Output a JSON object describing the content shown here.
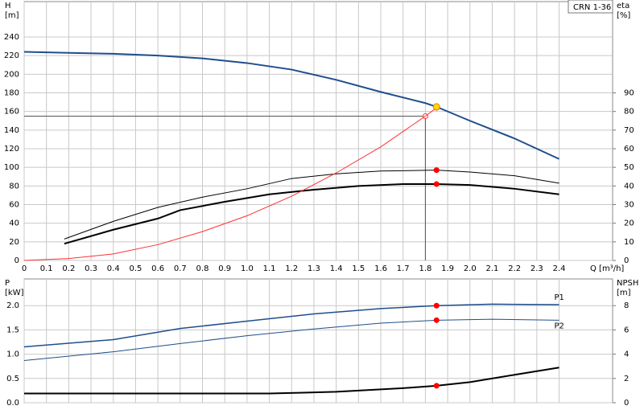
{
  "chart_data": [
    {
      "type": "line",
      "xlabel": "Q [m³/h]",
      "ylabel": [
        "H",
        "[m]"
      ],
      "y2label": [
        "eta",
        "[%]"
      ],
      "tag": "CRN 1-36",
      "grid": true,
      "xlim": [
        0,
        2.64
      ],
      "xticks": [
        0,
        0.1,
        0.2,
        0.3,
        0.4,
        0.5,
        0.6,
        0.7,
        0.8,
        0.9,
        {
          "value": 1,
          "label": "1.0"
        },
        1.1,
        1.2,
        1.3,
        1.4,
        1.5,
        1.6,
        1.7,
        1.8,
        1.9,
        {
          "value": 2,
          "label": "2.0"
        },
        2.1,
        2.2,
        2.3,
        2.4
      ],
      "ylim": [
        0,
        278
      ],
      "yticks": [
        0,
        20,
        40,
        60,
        80,
        100,
        120,
        140,
        160,
        180,
        200,
        220,
        240
      ],
      "y2lim": [
        0,
        139
      ],
      "y2ticks": [
        0,
        10,
        20,
        30,
        40,
        50,
        60,
        70,
        80,
        90
      ],
      "duty_point": {
        "x": 1.85,
        "y": 165,
        "color": "#ffd700"
      },
      "reference_point": {
        "x": 1.8,
        "y": 155
      },
      "series": [
        {
          "color": "#1f4e8c",
          "width": 2,
          "x": [
            0,
            0.2,
            0.4,
            0.6,
            0.8,
            1.0,
            1.2,
            1.4,
            1.6,
            1.8,
            1.85,
            2.0,
            2.2,
            2.4
          ],
          "values": [
            224,
            223,
            222,
            220,
            217,
            212,
            205,
            194,
            181,
            169,
            165,
            150,
            131,
            109
          ]
        },
        {
          "color": "#000000",
          "width": 1,
          "axis": "y2",
          "x": [
            0.18,
            0.4,
            0.6,
            0.8,
            1.0,
            1.2,
            1.4,
            1.6,
            1.85,
            2.0,
            2.2,
            2.4
          ],
          "values": [
            11.5,
            21,
            28.5,
            34,
            38.5,
            44,
            46.5,
            48,
            48.5,
            47.5,
            45.5,
            41.5
          ]
        },
        {
          "color": "#000000",
          "width": 2,
          "axis": "y2",
          "x": [
            0.18,
            0.4,
            0.6,
            0.7,
            0.9,
            1.1,
            1.3,
            1.5,
            1.7,
            1.85,
            2.0,
            2.2,
            2.4
          ],
          "values": [
            9,
            16.5,
            22.5,
            27,
            31.5,
            35.5,
            38,
            40,
            41,
            41,
            40.5,
            38.5,
            35.5
          ]
        },
        {
          "color": "#ff3030",
          "width": 1,
          "x": [
            0,
            0.2,
            0.4,
            0.6,
            0.8,
            1.0,
            1.2,
            1.4,
            1.6,
            1.8,
            1.85
          ],
          "values": [
            0,
            2,
            7,
            17,
            31,
            48,
            69,
            94,
            122,
            155,
            164
          ]
        }
      ]
    },
    {
      "type": "line",
      "ylabel": [
        "P",
        "[kW]"
      ],
      "y2label": [
        "NPSH",
        "[m]"
      ],
      "grid": true,
      "xlim": [
        0,
        2.64
      ],
      "ylim": [
        0,
        2.55
      ],
      "yticks": [
        {
          "value": 0,
          "label": "0.0"
        },
        0.5,
        {
          "value": 1,
          "label": "1.0"
        },
        1.5,
        {
          "value": 2,
          "label": "2.0"
        }
      ],
      "y2lim": [
        0,
        10.2
      ],
      "y2ticks": [
        0,
        2,
        4,
        6,
        8
      ],
      "duty_x": 1.85,
      "series": [
        {
          "name": "P1",
          "color": "#1f4e8c",
          "width": 1.5,
          "x": [
            0,
            0.4,
            0.7,
            1.0,
            1.3,
            1.6,
            1.85,
            2.1,
            2.4
          ],
          "values": [
            1.15,
            1.3,
            1.53,
            1.68,
            1.83,
            1.94,
            2.0,
            2.03,
            2.02
          ]
        },
        {
          "name": "P2",
          "color": "#1f4e8c",
          "width": 1,
          "x": [
            0,
            0.4,
            0.7,
            1.0,
            1.3,
            1.6,
            1.85,
            2.1,
            2.4
          ],
          "values": [
            0.87,
            1.05,
            1.22,
            1.38,
            1.52,
            1.64,
            1.7,
            1.72,
            1.7
          ]
        },
        {
          "color": "#000000",
          "width": 2,
          "axis": "y2",
          "x": [
            0,
            0.7,
            1.1,
            1.4,
            1.7,
            1.85,
            2.0,
            2.2,
            2.4
          ],
          "values": [
            0.76,
            0.76,
            0.76,
            0.9,
            1.2,
            1.4,
            1.7,
            2.3,
            2.9
          ]
        }
      ]
    }
  ]
}
